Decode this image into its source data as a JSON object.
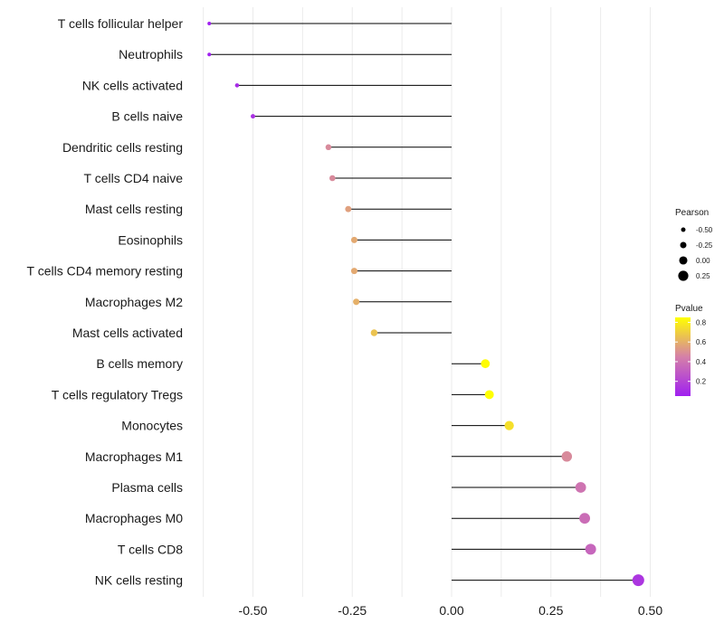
{
  "chart_data": {
    "type": "lollipop",
    "title": "",
    "xlabel": "",
    "ylabel": "",
    "xlim": [
      -0.65,
      0.56
    ],
    "xticks": [
      -0.5,
      -0.25,
      0.0,
      0.25,
      0.5
    ],
    "xtick_labels": [
      "-0.50",
      "-0.25",
      "0.00",
      "0.25",
      "0.50"
    ],
    "grid": true,
    "categories": [
      "T cells follicular helper",
      "Neutrophils",
      "NK cells activated",
      "B cells naive",
      "Dendritic cells resting",
      "T cells CD4 naive",
      "Mast cells resting",
      "Eosinophils",
      "T cells CD4 memory resting",
      "Macrophages M2",
      "Mast cells activated",
      "B cells memory",
      "T cells regulatory  Tregs ",
      "Monocytes",
      "Macrophages M1",
      "Plasma cells",
      "Macrophages M0",
      "T cells CD8",
      "NK cells resting"
    ],
    "pearson": [
      -0.61,
      -0.61,
      -0.54,
      -0.5,
      -0.31,
      -0.3,
      -0.26,
      -0.245,
      -0.245,
      -0.24,
      -0.195,
      0.085,
      0.095,
      0.145,
      0.29,
      0.325,
      0.335,
      0.35,
      0.47
    ],
    "pvalue": [
      0.05,
      0.05,
      0.1,
      0.12,
      0.48,
      0.48,
      0.55,
      0.58,
      0.58,
      0.6,
      0.66,
      0.84,
      0.85,
      0.75,
      0.48,
      0.4,
      0.37,
      0.34,
      0.14
    ],
    "size_legend": {
      "title": "Pearson",
      "values": [
        -0.5,
        -0.25,
        0.0,
        0.25
      ],
      "labels": [
        "-0.50",
        "-0.25",
        "0.00",
        "0.25"
      ]
    },
    "color_legend": {
      "title": "Pvalue",
      "range": [
        0.05,
        0.85
      ],
      "ticks": [
        0.8,
        0.6,
        0.4,
        0.2
      ],
      "labels": [
        "0.8",
        "0.6",
        "0.4",
        "0.2"
      ],
      "low_color": "#a020f0",
      "mid_color": "#d580a8",
      "high_color": "#ffff00"
    }
  }
}
